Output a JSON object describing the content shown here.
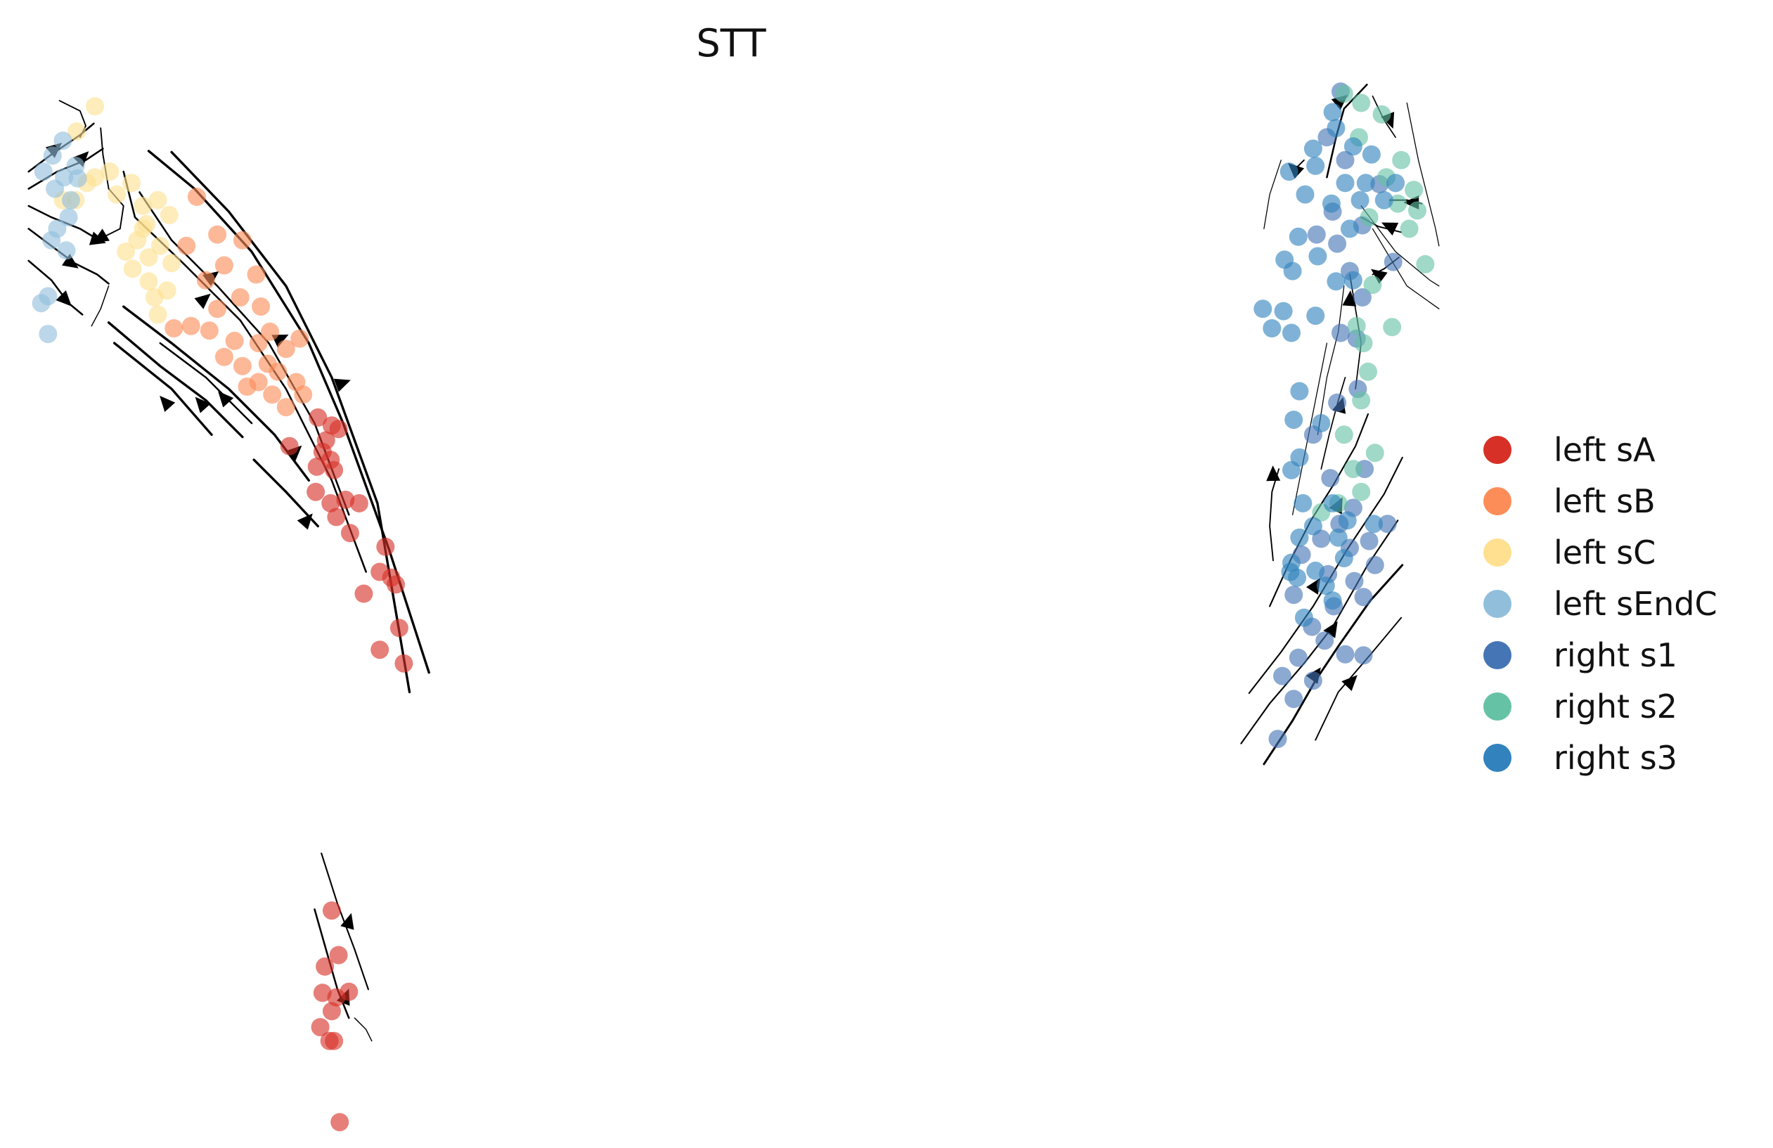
{
  "chart_data": {
    "type": "scatter",
    "title": "STT",
    "xlabel": "",
    "ylabel": "",
    "xlim": [
      0,
      1550
    ],
    "ylim": [
      1020,
      0
    ],
    "axes_visible": false,
    "grid": false,
    "legend_position": "right",
    "series": [
      {
        "name": "left sA",
        "color": "#d73027",
        "points": [
          [
            278,
            365
          ],
          [
            290,
            372
          ],
          [
            285,
            385
          ],
          [
            296,
            375
          ],
          [
            282,
            395
          ],
          [
            289,
            402
          ],
          [
            253,
            390
          ],
          [
            277,
            408
          ],
          [
            292,
            411
          ],
          [
            276,
            430
          ],
          [
            289,
            440
          ],
          [
            302,
            437
          ],
          [
            314,
            440
          ],
          [
            294,
            452
          ],
          [
            306,
            466
          ],
          [
            337,
            478
          ],
          [
            332,
            500
          ],
          [
            346,
            511
          ],
          [
            318,
            519
          ],
          [
            342,
            505
          ],
          [
            349,
            549
          ],
          [
            332,
            568
          ],
          [
            353,
            580
          ],
          [
            290,
            796
          ],
          [
            296,
            835
          ],
          [
            284,
            845
          ],
          [
            282,
            868
          ],
          [
            294,
            872
          ],
          [
            305,
            867
          ],
          [
            290,
            884
          ],
          [
            280,
            898
          ],
          [
            292,
            910
          ],
          [
            288,
            910
          ],
          [
            297,
            981
          ]
        ]
      },
      {
        "name": "left sB",
        "color": "#fc8d59",
        "points": [
          [
            172,
            172
          ],
          [
            190,
            205
          ],
          [
            212,
            210
          ],
          [
            163,
            215
          ],
          [
            196,
            232
          ],
          [
            224,
            240
          ],
          [
            180,
            245
          ],
          [
            210,
            260
          ],
          [
            190,
            270
          ],
          [
            228,
            268
          ],
          [
            167,
            285
          ],
          [
            183,
            289
          ],
          [
            205,
            298
          ],
          [
            152,
            287
          ],
          [
            236,
            290
          ],
          [
            226,
            300
          ],
          [
            250,
            305
          ],
          [
            262,
            296
          ],
          [
            196,
            312
          ],
          [
            212,
            320
          ],
          [
            234,
            318
          ],
          [
            243,
            325
          ],
          [
            226,
            334
          ],
          [
            216,
            338
          ],
          [
            259,
            334
          ],
          [
            265,
            345
          ],
          [
            238,
            345
          ],
          [
            250,
            356
          ]
        ]
      },
      {
        "name": "left sC",
        "color": "#fee090",
        "points": [
          [
            83,
            93
          ],
          [
            67,
            115
          ],
          [
            96,
            150
          ],
          [
            83,
            155
          ],
          [
            102,
            170
          ],
          [
            115,
            160
          ],
          [
            76,
            160
          ],
          [
            66,
            175
          ],
          [
            55,
            175
          ],
          [
            125,
            180
          ],
          [
            138,
            175
          ],
          [
            148,
            188
          ],
          [
            128,
            196
          ],
          [
            120,
            210
          ],
          [
            140,
            215
          ],
          [
            130,
            225
          ],
          [
            150,
            230
          ],
          [
            116,
            235
          ],
          [
            130,
            246
          ],
          [
            146,
            254
          ],
          [
            138,
            275
          ],
          [
            110,
            220
          ],
          [
            125,
            200
          ],
          [
            135,
            260
          ]
        ]
      },
      {
        "name": "left sEndC",
        "color": "#91bfdb",
        "points": [
          [
            55,
            123
          ],
          [
            46,
            136
          ],
          [
            38,
            150
          ],
          [
            56,
            155
          ],
          [
            68,
            156
          ],
          [
            62,
            175
          ],
          [
            48,
            165
          ],
          [
            60,
            190
          ],
          [
            45,
            210
          ],
          [
            58,
            219
          ],
          [
            36,
            265
          ],
          [
            42,
            259
          ],
          [
            42,
            292
          ],
          [
            50,
            200
          ],
          [
            66,
            145
          ]
        ]
      },
      {
        "name": "right s1",
        "color": "#4575b4",
        "points": [
          [
            1172,
            80
          ],
          [
            1160,
            120
          ],
          [
            1176,
            140
          ],
          [
            1206,
            161
          ],
          [
            1165,
            185
          ],
          [
            1191,
            197
          ],
          [
            1151,
            205
          ],
          [
            1169,
            213
          ],
          [
            1180,
            237
          ],
          [
            1218,
            229
          ],
          [
            1191,
            260
          ],
          [
            1172,
            291
          ],
          [
            1186,
            296
          ],
          [
            1148,
            380
          ],
          [
            1163,
            418
          ],
          [
            1193,
            410
          ],
          [
            1183,
            444
          ],
          [
            1213,
            458
          ],
          [
            1197,
            473
          ],
          [
            1171,
            458
          ],
          [
            1155,
            471
          ],
          [
            1161,
            502
          ],
          [
            1202,
            494
          ],
          [
            1184,
            508
          ],
          [
            1131,
            520
          ],
          [
            1166,
            530
          ],
          [
            1192,
            522
          ],
          [
            1147,
            548
          ],
          [
            1158,
            560
          ],
          [
            1135,
            575
          ],
          [
            1176,
            572
          ],
          [
            1192,
            573
          ],
          [
            1121,
            591
          ],
          [
            1148,
            595
          ],
          [
            1131,
            611
          ],
          [
            1117,
            646
          ],
          [
            1138,
            485
          ],
          [
            1180,
            479
          ],
          [
            1169,
            352
          ],
          [
            1187,
            340
          ]
        ]
      },
      {
        "name": "right s2",
        "color": "#66c2a5",
        "points": [
          [
            1175,
            82
          ],
          [
            1190,
            90
          ],
          [
            1208,
            100
          ],
          [
            1188,
            120
          ],
          [
            1225,
            140
          ],
          [
            1212,
            155
          ],
          [
            1236,
            166
          ],
          [
            1222,
            178
          ],
          [
            1239,
            184
          ],
          [
            1197,
            190
          ],
          [
            1246,
            231
          ],
          [
            1200,
            249
          ],
          [
            1217,
            286
          ],
          [
            1192,
            300
          ],
          [
            1186,
            285
          ],
          [
            1196,
            325
          ],
          [
            1175,
            380
          ],
          [
            1202,
            396
          ],
          [
            1183,
            410
          ],
          [
            1190,
            430
          ],
          [
            1170,
            440
          ],
          [
            1155,
            448
          ],
          [
            1190,
            350
          ],
          [
            1232,
            200
          ]
        ]
      },
      {
        "name": "right s3",
        "color": "#3182bd",
        "points": [
          [
            1165,
            98
          ],
          [
            1148,
            130
          ],
          [
            1168,
            112
          ],
          [
            1183,
            128
          ],
          [
            1199,
            135
          ],
          [
            1176,
            160
          ],
          [
            1141,
            170
          ],
          [
            1127,
            150
          ],
          [
            1150,
            145
          ],
          [
            1189,
            175
          ],
          [
            1180,
            200
          ],
          [
            1164,
            178
          ],
          [
            1135,
            207
          ],
          [
            1123,
            227
          ],
          [
            1130,
            237
          ],
          [
            1152,
            224
          ],
          [
            1104,
            270
          ],
          [
            1122,
            272
          ],
          [
            1112,
            287
          ],
          [
            1129,
            291
          ],
          [
            1150,
            276
          ],
          [
            1168,
            246
          ],
          [
            1183,
            245
          ],
          [
            1136,
            342
          ],
          [
            1131,
            367
          ],
          [
            1155,
            370
          ],
          [
            1136,
            400
          ],
          [
            1129,
            411
          ],
          [
            1139,
            440
          ],
          [
            1165,
            440
          ],
          [
            1178,
            455
          ],
          [
            1136,
            470
          ],
          [
            1129,
            492
          ],
          [
            1150,
            499
          ],
          [
            1175,
            488
          ],
          [
            1201,
            458
          ],
          [
            1134,
            505
          ],
          [
            1165,
            525
          ],
          [
            1140,
            540
          ],
          [
            1159,
            512
          ],
          [
            1128,
            500
          ],
          [
            1148,
            460
          ],
          [
            1170,
            470
          ],
          [
            1210,
            175
          ],
          [
            1194,
            160
          ],
          [
            1220,
            160
          ]
        ]
      }
    ]
  }
}
